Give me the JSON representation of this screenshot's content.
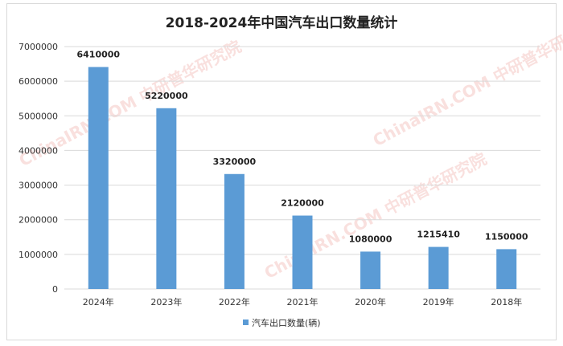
{
  "chart_data": {
    "type": "bar",
    "title": "2018-2024年中国汽车出口数量统计",
    "categories": [
      "2024年",
      "2023年",
      "2022年",
      "2021年",
      "2020年",
      "2019年",
      "2018年"
    ],
    "series": [
      {
        "name": "汽车出口数量(辆)",
        "values": [
          6410000,
          5220000,
          3320000,
          2120000,
          1080000,
          1215410,
          1150000
        ],
        "color": "#5b9bd5"
      }
    ],
    "data_labels": [
      "6410000",
      "5220000",
      "3320000",
      "2120000",
      "1080000",
      "1215410",
      "1150000"
    ],
    "yticks": [
      0,
      1000000,
      2000000,
      3000000,
      4000000,
      5000000,
      6000000,
      7000000
    ],
    "ylim": [
      0,
      7000000
    ],
    "grid": true,
    "legend_position": "bottom",
    "watermark": "ChinaIRN.COM 中研普华研究院"
  }
}
